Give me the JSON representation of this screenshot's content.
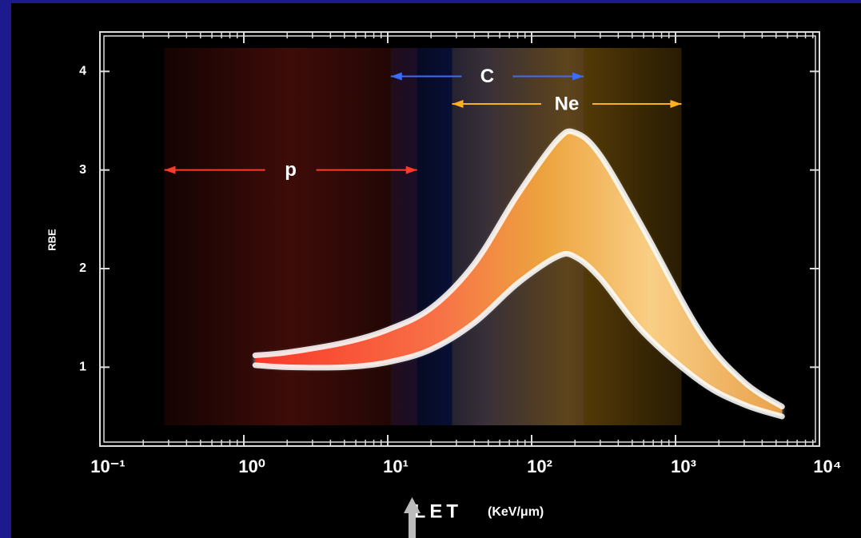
{
  "chart_data": {
    "type": "band-curve",
    "x_label": "LET",
    "x_unit": "(KeV/μm)",
    "y_label": "RBE",
    "xscale": "log",
    "xlim": [
      0.1,
      10000
    ],
    "xticks": [
      {
        "value": 0.1,
        "label": "10⁻¹"
      },
      {
        "value": 1,
        "label": "10⁰"
      },
      {
        "value": 10,
        "label": "10¹"
      },
      {
        "value": 100,
        "label": "10²"
      },
      {
        "value": 1000,
        "label": "10³"
      },
      {
        "value": 10000,
        "label": "10⁴"
      }
    ],
    "ylim": [
      0.2,
      4.4
    ],
    "yticks": [
      1,
      2,
      3,
      4
    ],
    "ranges": [
      {
        "name": "p",
        "x": [
          0.28,
          16
        ],
        "y": 3,
        "color": "#ff3a2a",
        "band_color": "#8a1a12"
      },
      {
        "name": "C",
        "x": [
          10.5,
          230
        ],
        "y": 3.95,
        "color": "#3a6cff",
        "band_color": "#1a2c9a"
      },
      {
        "name": "Ne",
        "x": [
          28,
          1100
        ],
        "y": 3.67,
        "color": "#ffb020",
        "band_color": "#c88a10"
      }
    ],
    "curve": {
      "x": [
        1.2,
        2,
        5,
        10,
        20,
        40,
        80,
        150,
        200,
        300,
        600,
        1500,
        3000,
        5500
      ],
      "upper": [
        1.12,
        1.15,
        1.25,
        1.38,
        1.6,
        2.05,
        2.75,
        3.3,
        3.38,
        3.15,
        2.4,
        1.35,
        0.85,
        0.6
      ],
      "lower": [
        1.02,
        1.0,
        1.0,
        1.05,
        1.18,
        1.45,
        1.85,
        2.12,
        2.12,
        1.9,
        1.35,
        0.85,
        0.62,
        0.5
      ]
    }
  }
}
